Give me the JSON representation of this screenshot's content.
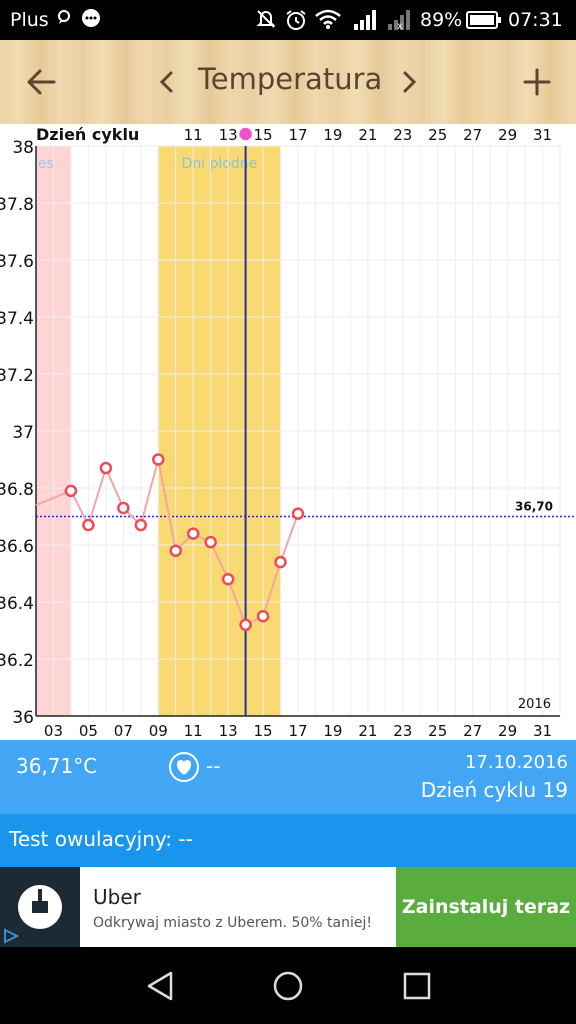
{
  "status": {
    "carrier": "Plus",
    "battery": "89%",
    "time": "07:31"
  },
  "toolbar": {
    "title": "Temperatura",
    "back_icon": "arrow-left-icon",
    "prev_icon": "chevron-left-icon",
    "next_icon": "chevron-right-icon",
    "add_icon": "plus-icon"
  },
  "chart": {
    "top_axis_label": "Dzień cyklu",
    "menses_label_fragment": "es",
    "fertile_label": "Dni płodne",
    "ref_label": "36,70",
    "year_label": "2016",
    "colors": {
      "menses": "#ffd4d4",
      "fertile": "#f9da72",
      "line": "#f4a6a6",
      "marker": "#ee4b57",
      "today": "#2430b0",
      "ref": "#1f2bd0"
    }
  },
  "chart_data": {
    "type": "line",
    "ylim": [
      36,
      38
    ],
    "y_ticks": [
      "36",
      "36.2",
      "36.4",
      "36.6",
      "36.8",
      "37",
      "37.2",
      "37.4",
      "37.6",
      "37.8",
      "38"
    ],
    "x_range_days": [
      2,
      32
    ],
    "bottom_ticks": [
      "03",
      "05",
      "07",
      "09",
      "11",
      "13",
      "15",
      "17",
      "19",
      "21",
      "23",
      "25",
      "27",
      "29",
      "31"
    ],
    "top_ticks": [
      "11",
      "13",
      "15",
      "17",
      "19",
      "21",
      "23",
      "25",
      "27",
      "29",
      "31"
    ],
    "menses_days": [
      2,
      4
    ],
    "fertile_days": [
      9,
      16
    ],
    "today_day": 14,
    "reference_temperature": 36.7,
    "series": [
      {
        "x": [
          4,
          5,
          6,
          7,
          8,
          9,
          10,
          11,
          12,
          13,
          14,
          15,
          16,
          17
        ],
        "values": [
          36.79,
          36.67,
          36.87,
          36.73,
          36.67,
          36.9,
          36.58,
          36.64,
          36.61,
          36.48,
          36.32,
          36.35,
          36.54,
          36.71
        ]
      }
    ]
  },
  "info": {
    "temperature": "36,71°C",
    "heart_value": "--",
    "date": "17.10.2016",
    "cycle_day": "Dzień cyklu 19"
  },
  "test": {
    "label": "Test owulacyjny: --"
  },
  "ad": {
    "title": "Uber",
    "subtitle": "Odkrywaj miasto z Uberem. 50% taniej!",
    "cta": "Zainstaluj teraz"
  }
}
